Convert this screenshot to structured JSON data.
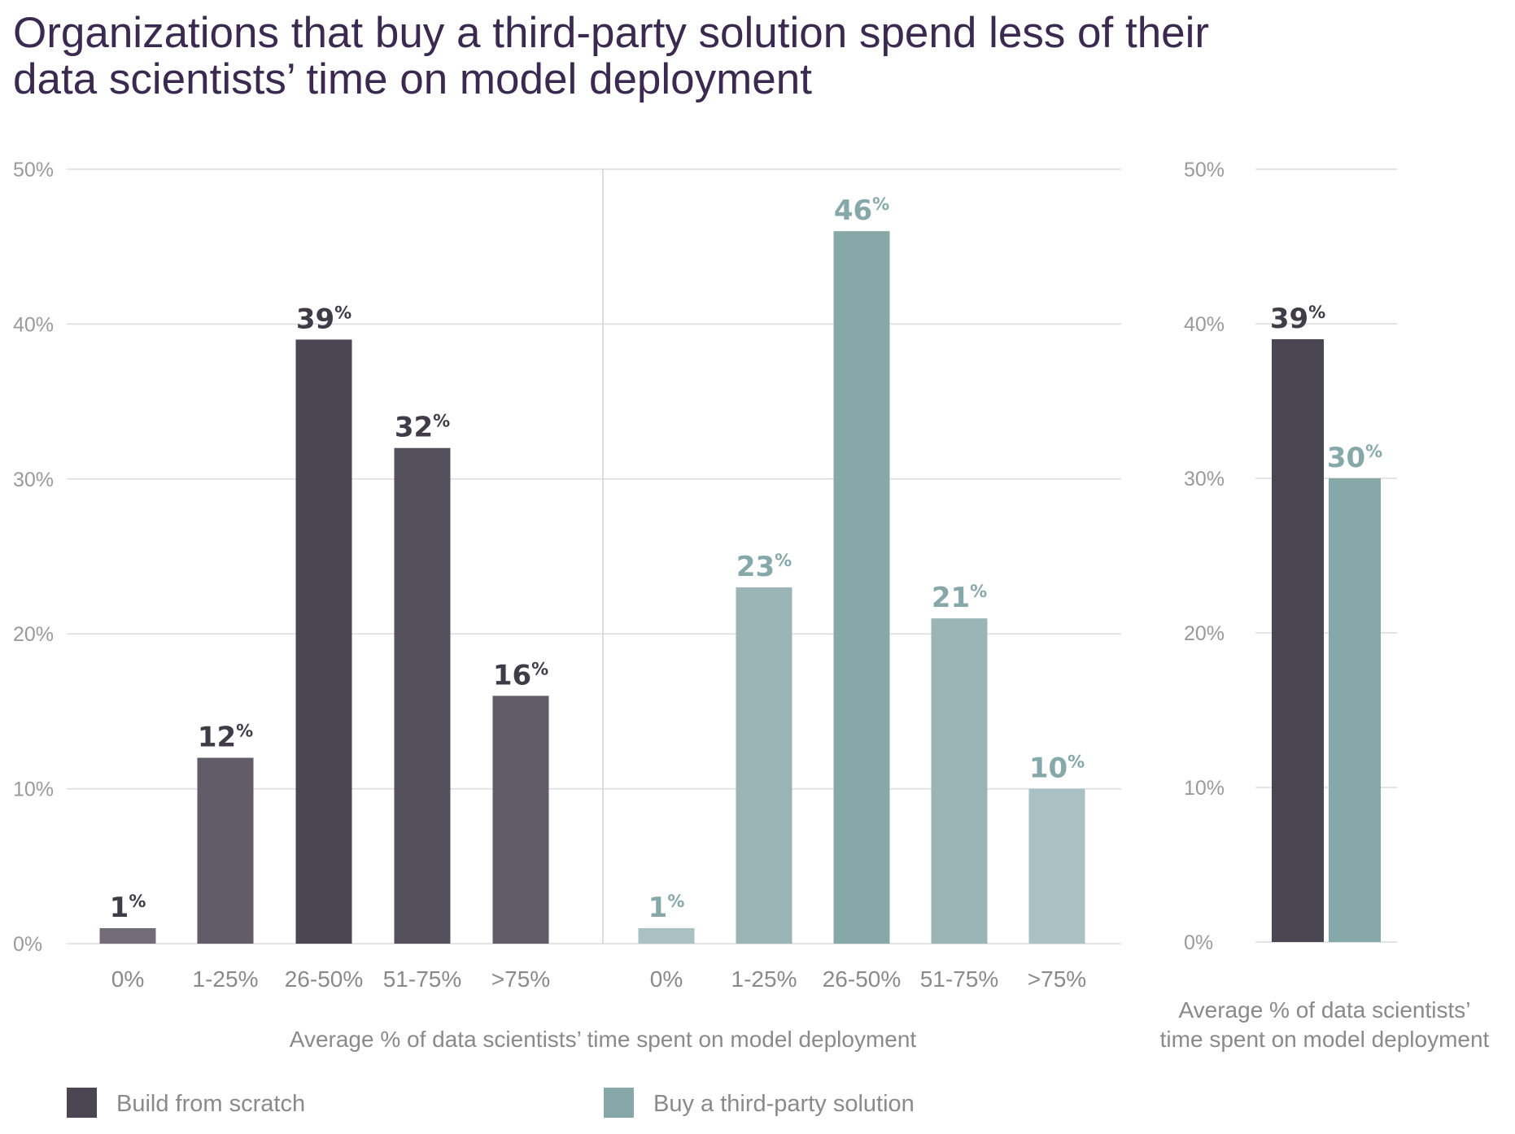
{
  "title": {
    "line1": "Organizations that buy a third-party solution spend less of their",
    "line2": "data scientists’ time on model deployment"
  },
  "chart_data": [
    {
      "type": "bar",
      "title": "Organizations that buy a third-party solution spend less of their data scientists’ time on model deployment",
      "xlabel": "Average % of data scientists’ time spent on model deployment",
      "ylabel": "",
      "ylim": [
        0,
        50
      ],
      "yticks": [
        "0%",
        "10%",
        "20%",
        "30%",
        "40%",
        "50%"
      ],
      "grid": true,
      "groups": [
        {
          "name": "Build from scratch",
          "categories": [
            "0%",
            "1-25%",
            "26-50%",
            "51-75%",
            ">75%"
          ],
          "values": [
            1,
            12,
            39,
            32,
            16
          ],
          "labels": [
            "1%",
            "12%",
            "39%",
            "32%",
            "16%"
          ],
          "colors": [
            "#736c78",
            "#625c68",
            "#4a4652",
            "#54505c",
            "#625c68"
          ],
          "label_color": "#3f3c47"
        },
        {
          "name": "Buy a third-party solution",
          "categories": [
            "0%",
            "1-25%",
            "26-50%",
            "51-75%",
            ">75%"
          ],
          "values": [
            1,
            23,
            46,
            21,
            10
          ],
          "labels": [
            "1%",
            "23%",
            "46%",
            "21%",
            "10%"
          ],
          "colors": [
            "#a9c1c2",
            "#9bb5b7",
            "#86a8a9",
            "#9bb5b7",
            "#a9c1c2"
          ],
          "label_color": "#86a8a9"
        }
      ]
    },
    {
      "type": "bar",
      "title": "",
      "xlabel_lines": [
        "Average % of data scientists’",
        "time spent on model deployment"
      ],
      "ylabel": "",
      "ylim": [
        0,
        50
      ],
      "yticks": [
        "0%",
        "10%",
        "20%",
        "30%",
        "40%",
        "50%"
      ],
      "grid": true,
      "series": [
        {
          "name": "Build from scratch",
          "value": 39,
          "label": "39%",
          "color": "#4a4652",
          "label_color": "#3f3c47"
        },
        {
          "name": "Buy a third-party solution",
          "value": 30,
          "label": "30%",
          "color": "#86a8a9",
          "label_color": "#86a8a9"
        }
      ]
    }
  ],
  "legend": [
    {
      "label": "Build from scratch",
      "color": "#4a4652"
    },
    {
      "label": "Buy a third-party solution",
      "color": "#86a8a9"
    }
  ]
}
